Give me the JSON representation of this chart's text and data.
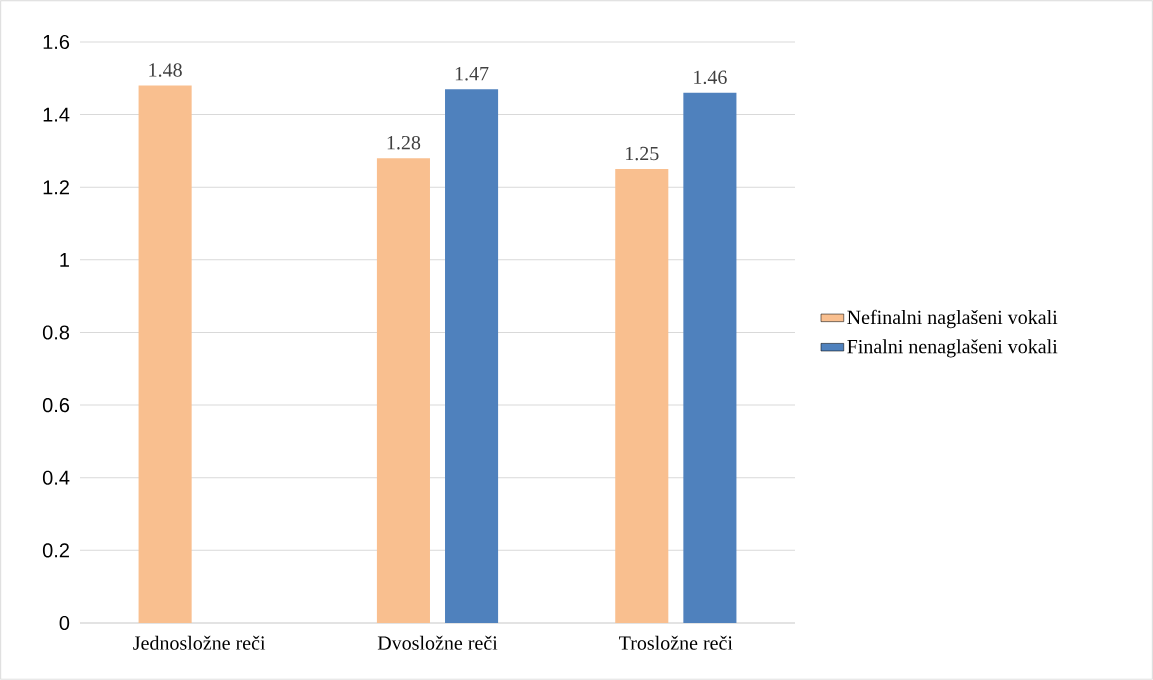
{
  "chart_data": {
    "type": "bar",
    "categories": [
      "Jednosložne reči",
      "Dvosložne reči",
      "Trosložne reči"
    ],
    "series": [
      {
        "name": "Nefinalni naglašeni vokali",
        "color": "#f9bf8f",
        "values": [
          1.48,
          1.28,
          1.25
        ]
      },
      {
        "name": "Finalni nenaglašeni vokali",
        "color": "#4f81bd",
        "values": [
          null,
          1.47,
          1.46
        ]
      }
    ],
    "ylim": [
      0,
      1.6
    ],
    "yticks": [
      0,
      0.2,
      0.4,
      0.6,
      0.8,
      1,
      1.2,
      1.4,
      1.6
    ],
    "grid": "y",
    "legend": "right",
    "data_labels": true
  }
}
